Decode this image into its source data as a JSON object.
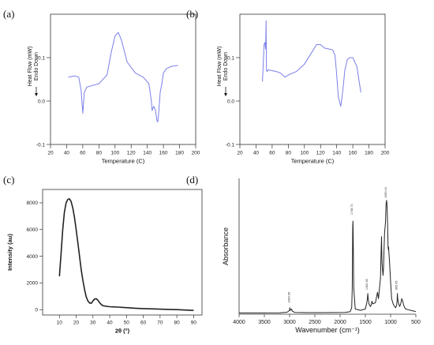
{
  "panels": {
    "a": {
      "label": "(a)"
    },
    "b": {
      "label": "(b)"
    },
    "c": {
      "label": "(c)"
    },
    "d": {
      "label": "(d)"
    }
  },
  "chart_data": [
    {
      "id": "a",
      "type": "line",
      "xlabel": "Temperature (C)",
      "ylabel": "Heat Flow (mW)",
      "ylabel2": "Endo Down",
      "xlim": [
        20,
        200
      ],
      "ylim": [
        -0.1,
        0.2
      ],
      "xticks": [
        20,
        40,
        60,
        80,
        100,
        120,
        140,
        160,
        180,
        200
      ],
      "yticks": [
        -0.1,
        0.0,
        0.1
      ],
      "ytick_labels": [
        "-0.1",
        "0.0",
        "0.1"
      ],
      "color": "#7b7fe8",
      "series": [
        {
          "x": [
            42,
            50,
            55,
            58,
            60,
            62,
            65,
            70,
            80,
            90,
            95,
            100,
            104,
            108,
            115,
            125,
            135,
            142,
            145,
            146,
            148,
            150,
            152,
            153,
            154,
            156,
            158,
            160,
            164,
            170,
            178
          ],
          "y": [
            0.055,
            0.058,
            0.055,
            0.025,
            -0.028,
            0.02,
            0.032,
            0.035,
            0.04,
            0.06,
            0.11,
            0.15,
            0.158,
            0.14,
            0.09,
            0.065,
            0.055,
            0.04,
            0.0,
            -0.022,
            -0.012,
            -0.02,
            -0.045,
            -0.048,
            -0.03,
            0.02,
            0.04,
            0.065,
            0.075,
            0.08,
            0.082
          ]
        }
      ]
    },
    {
      "id": "b",
      "type": "line",
      "xlabel": "Temperature (C)",
      "ylabel": "Heat Flow (mW)",
      "ylabel2": "Endo Down",
      "xlim": [
        20,
        200
      ],
      "ylim": [
        -0.1,
        0.2
      ],
      "xticks": [
        20,
        40,
        60,
        80,
        100,
        120,
        140,
        160,
        180,
        200
      ],
      "yticks": [
        -0.1,
        0.0,
        0.1
      ],
      "ytick_labels": [
        "-0.1",
        "0.0",
        "0.1"
      ],
      "color": "#7b7fe8",
      "series": [
        {
          "x": [
            48,
            50,
            51,
            52,
            52.5,
            53,
            54,
            55,
            60,
            65,
            70,
            73,
            76,
            80,
            90,
            100,
            110,
            115,
            120,
            125,
            130,
            135,
            138,
            140,
            142,
            144,
            145,
            146,
            148,
            150,
            153,
            156,
            160,
            165,
            170
          ],
          "y": [
            0.045,
            0.13,
            0.135,
            0.12,
            0.185,
            0.07,
            0.068,
            0.072,
            0.07,
            0.068,
            0.065,
            0.06,
            0.055,
            0.06,
            0.068,
            0.085,
            0.115,
            0.13,
            0.13,
            0.122,
            0.12,
            0.118,
            0.105,
            0.06,
            0.01,
            -0.005,
            -0.012,
            0.0,
            0.03,
            0.07,
            0.095,
            0.1,
            0.1,
            0.08,
            0.02
          ]
        }
      ]
    },
    {
      "id": "c",
      "type": "line",
      "xlabel": "2θ (°)",
      "ylabel": "Intensity (au)",
      "xlim": [
        0,
        95
      ],
      "ylim": [
        -400,
        9000
      ],
      "xticks": [
        10,
        20,
        30,
        40,
        50,
        60,
        70,
        80,
        90
      ],
      "yticks": [
        0,
        2000,
        4000,
        6000,
        8000
      ],
      "color": "#222222",
      "series": [
        {
          "x": [
            10,
            11,
            12,
            13,
            14,
            15,
            16,
            17,
            18,
            19,
            20,
            21,
            22,
            23,
            24,
            25,
            26,
            27,
            28,
            29,
            30,
            31,
            32,
            33,
            34,
            35,
            36,
            38,
            40,
            42,
            45,
            48,
            50,
            55,
            60,
            65,
            70,
            75,
            80,
            85,
            90
          ],
          "y": [
            2500,
            4200,
            6000,
            7300,
            8000,
            8250,
            8300,
            8100,
            7600,
            6900,
            6000,
            5000,
            4000,
            3000,
            2200,
            1500,
            950,
            650,
            500,
            480,
            650,
            800,
            820,
            700,
            520,
            380,
            300,
            250,
            220,
            210,
            190,
            170,
            150,
            110,
            80,
            60,
            40,
            20,
            0,
            -30,
            -60
          ]
        }
      ]
    },
    {
      "id": "d",
      "type": "line",
      "xlabel": "Wavenumber (cm⁻¹)",
      "ylabel": "Absorbance",
      "xlim": [
        4000,
        500
      ],
      "xticks": [
        4000,
        3500,
        3000,
        2500,
        2000,
        1500,
        1000,
        500
      ],
      "ylim": [
        0,
        1.05
      ],
      "color": "#222222",
      "peak_labels": [
        {
          "x": 2994.95,
          "y": 0.07,
          "label": "2994.95"
        },
        {
          "x": 1748.74,
          "y": 0.75,
          "label": "1748.74"
        },
        {
          "x": 1452.36,
          "y": 0.17,
          "label": "1452.36"
        },
        {
          "x": 1080.44,
          "y": 0.88,
          "label": "1080.44"
        },
        {
          "x": 865.95,
          "y": 0.17,
          "label": "865.95"
        }
      ],
      "series": [
        {
          "x": [
            4000,
            3600,
            3200,
            3050,
            3000,
            2995,
            2990,
            2960,
            2950,
            2900,
            2700,
            2400,
            2100,
            1900,
            1800,
            1770,
            1760,
            1750,
            1745,
            1740,
            1730,
            1700,
            1600,
            1500,
            1470,
            1460,
            1452,
            1445,
            1430,
            1400,
            1385,
            1370,
            1350,
            1300,
            1280,
            1260,
            1240,
            1200,
            1190,
            1180,
            1170,
            1150,
            1140,
            1130,
            1120,
            1100,
            1090,
            1080,
            1070,
            1060,
            1050,
            1045,
            1040,
            1020,
            1000,
            980,
            950,
            920,
            900,
            880,
            870,
            866,
            860,
            840,
            820,
            800,
            780,
            760,
            740,
            720,
            700,
            650,
            600,
            550,
            500
          ],
          "y": [
            0.01,
            0.01,
            0.011,
            0.015,
            0.03,
            0.05,
            0.03,
            0.04,
            0.025,
            0.014,
            0.012,
            0.012,
            0.013,
            0.014,
            0.02,
            0.05,
            0.2,
            0.68,
            0.72,
            0.6,
            0.2,
            0.04,
            0.03,
            0.04,
            0.09,
            0.12,
            0.16,
            0.13,
            0.08,
            0.06,
            0.07,
            0.1,
            0.08,
            0.09,
            0.13,
            0.17,
            0.12,
            0.28,
            0.45,
            0.6,
            0.4,
            0.3,
            0.35,
            0.5,
            0.62,
            0.72,
            0.85,
            0.88,
            0.84,
            0.7,
            0.52,
            0.5,
            0.52,
            0.4,
            0.25,
            0.12,
            0.08,
            0.06,
            0.05,
            0.07,
            0.11,
            0.16,
            0.12,
            0.08,
            0.06,
            0.08,
            0.12,
            0.1,
            0.07,
            0.05,
            0.04,
            0.035,
            0.03,
            0.025,
            0.02
          ]
        }
      ]
    }
  ]
}
